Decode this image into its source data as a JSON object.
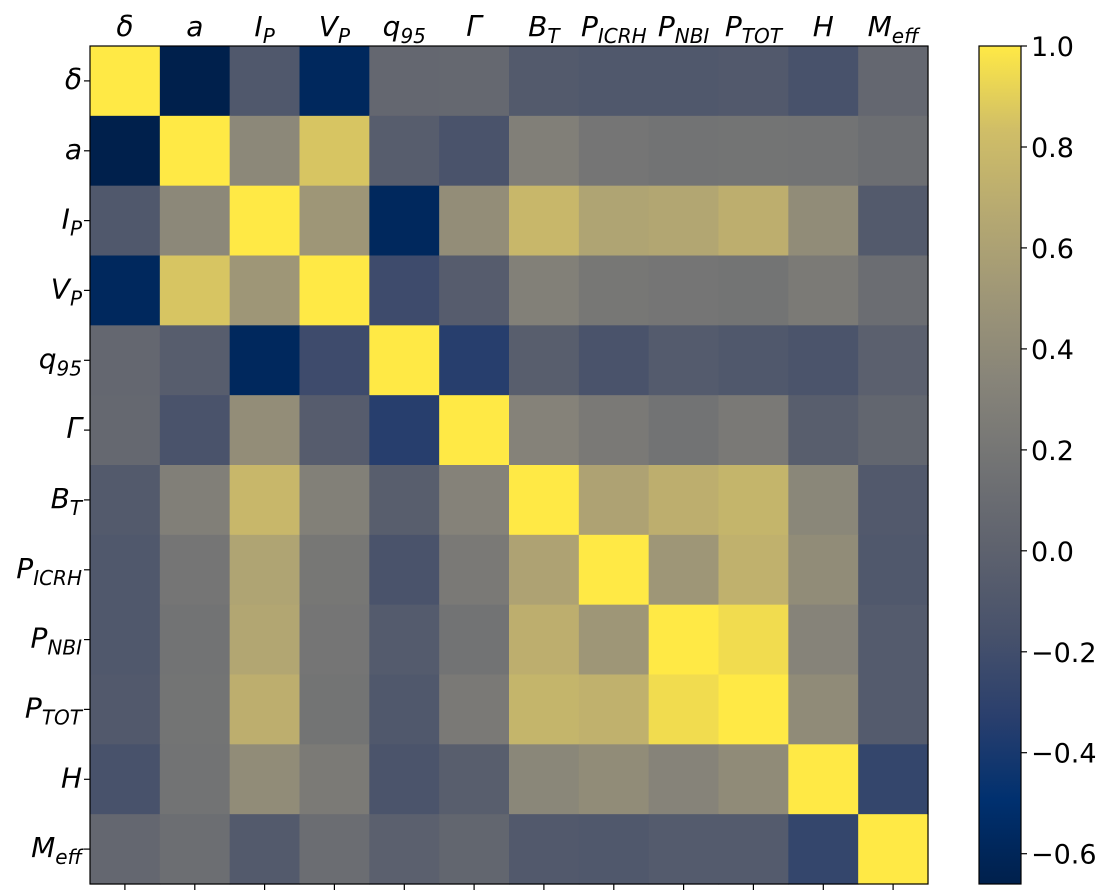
{
  "chart_data": {
    "type": "heatmap",
    "title": "",
    "xlabel": "",
    "ylabel": "",
    "variables": [
      {
        "base": "δ",
        "sub": ""
      },
      {
        "base": "a",
        "sub": ""
      },
      {
        "base": "I",
        "sub": "P"
      },
      {
        "base": "V",
        "sub": "P"
      },
      {
        "base": "q",
        "sub": "95"
      },
      {
        "base": "Γ",
        "sub": ""
      },
      {
        "base": "B",
        "sub": "T"
      },
      {
        "base": "P",
        "sub": "ICRH"
      },
      {
        "base": "P",
        "sub": "NBI"
      },
      {
        "base": "P",
        "sub": "TOT"
      },
      {
        "base": "H",
        "sub": ""
      },
      {
        "base": "M",
        "sub": "eff"
      }
    ],
    "matrix": [
      [
        1.0,
        -0.66,
        -0.1,
        -0.58,
        0.05,
        0.06,
        -0.08,
        -0.1,
        -0.1,
        -0.09,
        -0.16,
        0.05
      ],
      [
        -0.66,
        1.0,
        0.37,
        0.86,
        -0.05,
        -0.15,
        0.29,
        0.19,
        0.17,
        0.18,
        0.17,
        0.12
      ],
      [
        -0.1,
        0.37,
        1.0,
        0.5,
        -0.58,
        0.42,
        0.78,
        0.62,
        0.64,
        0.71,
        0.41,
        -0.08
      ],
      [
        -0.58,
        0.86,
        0.5,
        1.0,
        -0.22,
        -0.06,
        0.3,
        0.21,
        0.19,
        0.18,
        0.24,
        0.11
      ],
      [
        0.05,
        -0.05,
        -0.58,
        -0.22,
        1.0,
        -0.34,
        -0.04,
        -0.15,
        -0.07,
        -0.1,
        -0.14,
        -0.02
      ],
      [
        0.06,
        -0.15,
        0.42,
        -0.06,
        -0.34,
        1.0,
        0.32,
        0.23,
        0.17,
        0.23,
        -0.04,
        0.04
      ],
      [
        -0.08,
        0.29,
        0.78,
        0.3,
        -0.04,
        0.32,
        1.0,
        0.61,
        0.71,
        0.76,
        0.36,
        -0.09
      ],
      [
        -0.1,
        0.19,
        0.62,
        0.21,
        -0.15,
        0.23,
        0.61,
        1.0,
        0.5,
        0.73,
        0.41,
        -0.1
      ],
      [
        -0.1,
        0.17,
        0.64,
        0.19,
        -0.07,
        0.17,
        0.71,
        0.5,
        1.0,
        0.95,
        0.33,
        -0.07
      ],
      [
        -0.09,
        0.18,
        0.71,
        0.18,
        -0.1,
        0.23,
        0.76,
        0.73,
        0.95,
        1.0,
        0.4,
        -0.07
      ],
      [
        -0.16,
        0.17,
        0.41,
        0.24,
        -0.14,
        -0.04,
        0.36,
        0.41,
        0.33,
        0.4,
        1.0,
        -0.27
      ],
      [
        0.05,
        0.12,
        -0.08,
        0.11,
        -0.02,
        0.04,
        -0.09,
        -0.1,
        -0.07,
        -0.07,
        -0.27,
        1.0
      ]
    ],
    "colorbar": {
      "ticks": [
        "1.0",
        "0.8",
        "0.6",
        "0.4",
        "0.2",
        "0.0",
        "−0.2",
        "−0.4",
        "−0.6"
      ],
      "tick_values": [
        1.0,
        0.8,
        0.6,
        0.4,
        0.2,
        0.0,
        -0.2,
        -0.4,
        -0.6
      ],
      "range": [
        -0.66,
        1.0
      ]
    },
    "colormap": {
      "name": "cividis",
      "stops": [
        {
          "t": 0.0,
          "color": "#00204c"
        },
        {
          "t": 0.1,
          "color": "#00306f"
        },
        {
          "t": 0.2,
          "color": "#2a3f6d"
        },
        {
          "t": 0.3,
          "color": "#48526b"
        },
        {
          "t": 0.4,
          "color": "#5e626e"
        },
        {
          "t": 0.5,
          "color": "#727374"
        },
        {
          "t": 0.6,
          "color": "#878479"
        },
        {
          "t": 0.7,
          "color": "#9e9677"
        },
        {
          "t": 0.8,
          "color": "#b6a971"
        },
        {
          "t": 0.9,
          "color": "#d0be67"
        },
        {
          "t": 1.0,
          "color": "#ffe945"
        }
      ]
    }
  }
}
